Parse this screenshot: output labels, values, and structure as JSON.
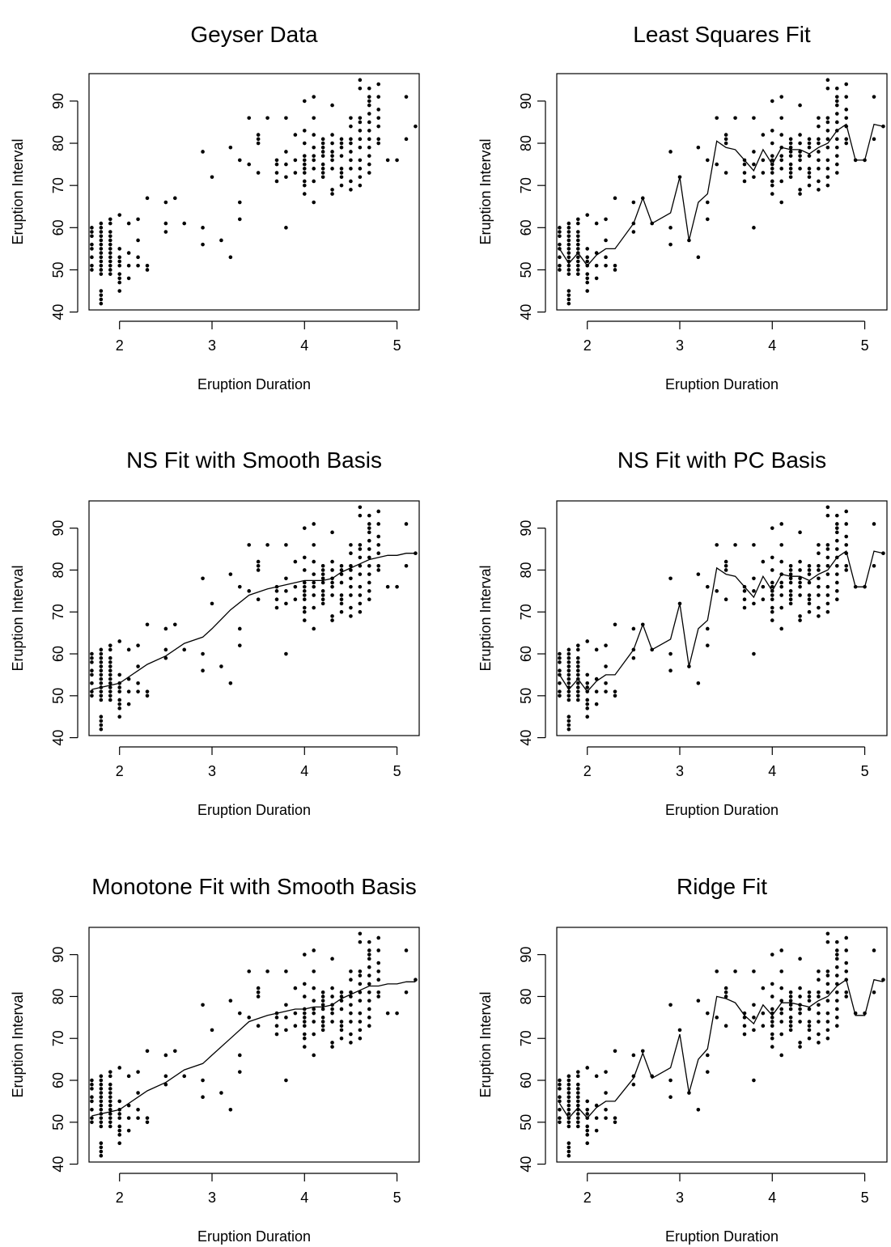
{
  "figure": {
    "panels": [
      {
        "title": "Geyser Data"
      },
      {
        "title": "Least Squares Fit"
      },
      {
        "title": "NS Fit with Smooth Basis"
      },
      {
        "title": "NS Fit with PC Basis"
      },
      {
        "title": "Monotone Fit with Smooth Basis"
      },
      {
        "title": "Ridge Fit"
      }
    ]
  },
  "colors": {
    "points": "#000000",
    "line": "#000000",
    "background": "#ffffff"
  },
  "chart_data": [
    {
      "type": "scatter",
      "title": "Geyser Data",
      "xlabel": "Eruption Duration",
      "ylabel": "Eruption Interval",
      "xlim": [
        1.67,
        5.24
      ],
      "ylim": [
        40.5,
        96.5
      ],
      "xticks": [
        2,
        3,
        4,
        5
      ],
      "yticks": [
        40,
        50,
        60,
        70,
        80,
        90
      ],
      "grid": false,
      "points": {
        "x": [
          1.7,
          1.7,
          1.7,
          1.7,
          1.7,
          1.7,
          1.7,
          1.7,
          1.8,
          1.8,
          1.8,
          1.8,
          1.8,
          1.8,
          1.8,
          1.8,
          1.8,
          1.8,
          1.8,
          1.8,
          1.8,
          1.8,
          1.8,
          1.8,
          1.8,
          1.9,
          1.9,
          1.9,
          1.9,
          1.9,
          1.9,
          1.9,
          1.9,
          1.9,
          1.9,
          1.9,
          1.9,
          1.9,
          2.0,
          2.0,
          2.0,
          2.0,
          2.0,
          2.0,
          2.0,
          2.0,
          2.0,
          2.1,
          2.1,
          2.1,
          2.1,
          2.2,
          2.2,
          2.2,
          2.2,
          2.3,
          2.3,
          2.3,
          2.5,
          2.5,
          2.5,
          2.6,
          2.7,
          2.9,
          2.9,
          2.9,
          3.0,
          3.1,
          3.2,
          3.2,
          3.3,
          3.3,
          3.3,
          3.4,
          3.4,
          3.5,
          3.5,
          3.5,
          3.5,
          3.6,
          3.7,
          3.7,
          3.7,
          3.7,
          3.8,
          3.8,
          3.8,
          3.8,
          3.8,
          3.9,
          3.9,
          3.9,
          4.0,
          4.0,
          4.0,
          4.0,
          4.0,
          4.0,
          4.0,
          4.0,
          4.0,
          4.0,
          4.0,
          4.1,
          4.1,
          4.1,
          4.1,
          4.1,
          4.1,
          4.1,
          4.1,
          4.1,
          4.2,
          4.2,
          4.2,
          4.2,
          4.2,
          4.2,
          4.2,
          4.2,
          4.2,
          4.3,
          4.3,
          4.3,
          4.3,
          4.3,
          4.3,
          4.3,
          4.3,
          4.3,
          4.4,
          4.4,
          4.4,
          4.4,
          4.4,
          4.4,
          4.4,
          4.4,
          4.5,
          4.5,
          4.5,
          4.5,
          4.5,
          4.5,
          4.5,
          4.5,
          4.5,
          4.6,
          4.6,
          4.6,
          4.6,
          4.6,
          4.6,
          4.6,
          4.6,
          4.6,
          4.6,
          4.6,
          4.7,
          4.7,
          4.7,
          4.7,
          4.7,
          4.7,
          4.7,
          4.7,
          4.7,
          4.7,
          4.7,
          4.7,
          4.8,
          4.8,
          4.8,
          4.8,
          4.8,
          4.8,
          4.8,
          4.9,
          5.0,
          5.1,
          5.1,
          5.2
        ],
        "y": [
          50,
          51,
          53,
          55,
          56,
          58,
          59,
          60,
          42,
          43,
          44,
          45,
          49,
          50,
          51,
          52,
          53,
          54,
          55,
          56,
          57,
          58,
          59,
          60,
          61,
          49,
          50,
          51,
          52,
          53,
          54,
          55,
          56,
          57,
          58,
          59,
          61,
          62,
          45,
          47,
          48,
          49,
          51,
          52,
          53,
          55,
          63,
          48,
          51,
          54,
          61,
          51,
          53,
          57,
          62,
          50,
          51,
          67,
          59,
          61,
          66,
          67,
          61,
          56,
          60,
          78,
          72,
          57,
          53,
          79,
          62,
          66,
          76,
          75,
          86,
          73,
          80,
          81,
          82,
          86,
          71,
          73,
          75,
          76,
          60,
          72,
          75,
          78,
          86,
          73,
          76,
          82,
          68,
          70,
          71,
          73,
          74,
          75,
          76,
          77,
          80,
          83,
          90,
          66,
          71,
          74,
          76,
          77,
          79,
          82,
          86,
          91,
          72,
          73,
          74,
          75,
          77,
          78,
          79,
          80,
          81,
          68,
          69,
          74,
          76,
          77,
          78,
          80,
          82,
          89,
          70,
          72,
          73,
          74,
          77,
          79,
          80,
          81,
          69,
          71,
          74,
          76,
          78,
          80,
          81,
          84,
          86,
          70,
          72,
          74,
          76,
          79,
          81,
          83,
          85,
          86,
          93,
          95,
          73,
          75,
          77,
          79,
          81,
          83,
          85,
          87,
          89,
          90,
          91,
          93,
          80,
          81,
          84,
          86,
          88,
          91,
          94,
          76,
          76,
          81,
          91,
          84
        ]
      }
    },
    {
      "type": "line",
      "title": "Least Squares Fit",
      "xlabel": "Eruption Duration",
      "ylabel": "Eruption Interval",
      "xlim": [
        1.67,
        5.24
      ],
      "ylim": [
        40.5,
        96.5
      ],
      "grid": false,
      "overlay_points": "same as Geyser Data",
      "series": [
        {
          "x": [
            1.7,
            1.8,
            1.9,
            2.0,
            2.1,
            2.2,
            2.3,
            2.5,
            2.6,
            2.7,
            2.9,
            3.0,
            3.1,
            3.2,
            3.3,
            3.4,
            3.5,
            3.6,
            3.7,
            3.8,
            3.9,
            4.0,
            4.1,
            4.2,
            4.3,
            4.4,
            4.5,
            4.6,
            4.7,
            4.8,
            4.9,
            5.0,
            5.1,
            5.2
          ],
          "y": [
            55,
            51.5,
            54,
            51,
            53.5,
            55,
            55,
            61,
            67,
            61,
            63.5,
            72,
            57,
            66,
            68,
            80.5,
            79,
            78.5,
            76,
            73.5,
            78.5,
            75,
            79,
            78.5,
            78.5,
            77.5,
            79,
            80,
            83,
            84.5,
            76,
            76,
            84.5,
            84
          ]
        }
      ]
    },
    {
      "type": "line",
      "title": "NS Fit with Smooth Basis",
      "xlabel": "Eruption Duration",
      "ylabel": "Eruption Interval",
      "xlim": [
        1.67,
        5.24
      ],
      "ylim": [
        40.5,
        96.5
      ],
      "grid": false,
      "overlay_points": "same as Geyser Data",
      "series": [
        {
          "x": [
            1.7,
            1.8,
            1.9,
            2.0,
            2.1,
            2.2,
            2.3,
            2.5,
            2.7,
            2.9,
            3.0,
            3.2,
            3.4,
            3.6,
            3.8,
            3.9,
            4.0,
            4.1,
            4.2,
            4.3,
            4.4,
            4.5,
            4.6,
            4.7,
            4.8,
            4.9,
            5.0,
            5.1,
            5.2
          ],
          "y": [
            51.5,
            52,
            52.5,
            53,
            54.5,
            56,
            57.5,
            59.5,
            62.5,
            64,
            66,
            70.5,
            74,
            75.5,
            76.5,
            77,
            77.5,
            77.5,
            77.5,
            78,
            79.5,
            80.5,
            81.5,
            82.5,
            83,
            83.5,
            83.5,
            84,
            84
          ]
        }
      ]
    },
    {
      "type": "line",
      "title": "NS Fit with PC Basis",
      "xlabel": "Eruption Duration",
      "ylabel": "Eruption Interval",
      "xlim": [
        1.67,
        5.24
      ],
      "ylim": [
        40.5,
        96.5
      ],
      "grid": false,
      "overlay_points": "same as Geyser Data",
      "series": [
        {
          "x": [
            1.7,
            1.8,
            1.9,
            2.0,
            2.1,
            2.2,
            2.3,
            2.5,
            2.6,
            2.7,
            2.9,
            3.0,
            3.1,
            3.2,
            3.3,
            3.4,
            3.5,
            3.6,
            3.7,
            3.8,
            3.9,
            4.0,
            4.1,
            4.2,
            4.3,
            4.4,
            4.5,
            4.6,
            4.7,
            4.8,
            4.9,
            5.0,
            5.1,
            5.2
          ],
          "y": [
            55,
            51.5,
            54,
            51,
            53.5,
            55,
            55,
            61,
            67,
            61,
            63.5,
            72,
            57,
            66,
            68,
            80.5,
            79,
            78.5,
            76,
            73.5,
            78.5,
            75,
            79,
            78.5,
            78.5,
            77.5,
            79,
            80,
            83,
            84.5,
            76,
            76,
            84.5,
            84
          ]
        }
      ]
    },
    {
      "type": "line",
      "title": "Monotone Fit with Smooth Basis",
      "xlabel": "Eruption Duration",
      "ylabel": "Eruption Interval",
      "xlim": [
        1.67,
        5.24
      ],
      "ylim": [
        40.5,
        96.5
      ],
      "grid": false,
      "overlay_points": "same as Geyser Data",
      "series": [
        {
          "x": [
            1.7,
            1.8,
            1.9,
            2.0,
            2.1,
            2.2,
            2.3,
            2.5,
            2.7,
            2.9,
            3.0,
            3.2,
            3.4,
            3.6,
            3.8,
            3.9,
            4.0,
            4.1,
            4.2,
            4.3,
            4.4,
            4.5,
            4.6,
            4.7,
            4.8,
            4.9,
            5.0,
            5.1,
            5.2
          ],
          "y": [
            51.5,
            52,
            52.5,
            53,
            54.5,
            56,
            57.5,
            59.5,
            62.5,
            64,
            66,
            70,
            74,
            75.5,
            76.5,
            77,
            77,
            77.5,
            77.5,
            78,
            79.5,
            80.5,
            81.5,
            82.5,
            82.5,
            83,
            83,
            83.5,
            83.5
          ]
        }
      ]
    },
    {
      "type": "line",
      "title": "Ridge Fit",
      "xlabel": "Eruption Duration",
      "ylabel": "Eruption Interval",
      "xlim": [
        1.67,
        5.24
      ],
      "ylim": [
        40.5,
        96.5
      ],
      "grid": false,
      "overlay_points": "same as Geyser Data",
      "series": [
        {
          "x": [
            1.7,
            1.8,
            1.9,
            2.0,
            2.1,
            2.2,
            2.3,
            2.5,
            2.6,
            2.7,
            2.9,
            3.0,
            3.1,
            3.2,
            3.3,
            3.4,
            3.5,
            3.6,
            3.7,
            3.8,
            3.9,
            4.0,
            4.1,
            4.2,
            4.3,
            4.4,
            4.5,
            4.6,
            4.7,
            4.8,
            4.9,
            5.0,
            5.1,
            5.2
          ],
          "y": [
            54.5,
            51,
            53.5,
            51,
            53.5,
            55,
            55,
            60.5,
            66.5,
            60.5,
            63,
            71,
            57,
            65,
            67.5,
            80,
            79.5,
            78.5,
            75.5,
            73.5,
            78,
            75.5,
            78.5,
            78.5,
            78,
            77.5,
            79,
            80,
            82.5,
            84,
            75.5,
            75.5,
            84,
            83.5
          ]
        }
      ]
    }
  ]
}
